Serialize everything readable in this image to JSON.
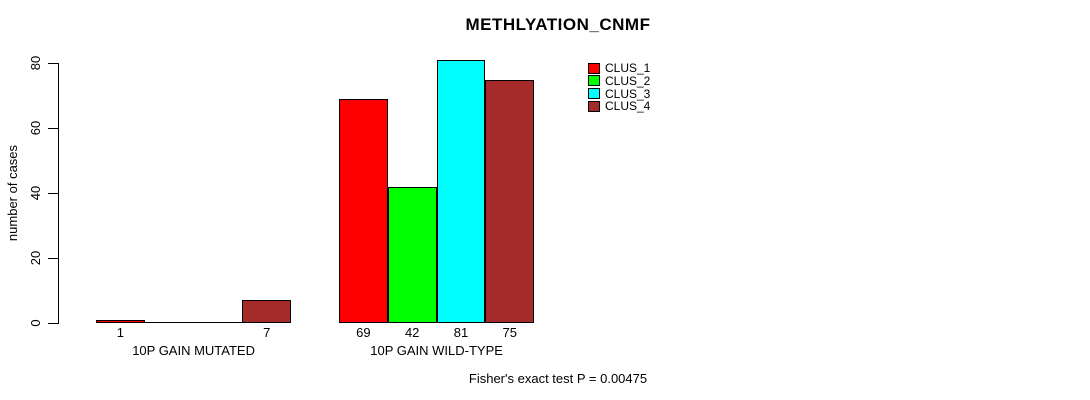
{
  "title": "METHLYATION_CNMF",
  "footer": "Fisher's exact test P = 0.00475",
  "chart_data": {
    "type": "bar",
    "categories": [
      "10P GAIN MUTATED",
      "10P GAIN WILD-TYPE"
    ],
    "series": [
      {
        "name": "CLUS_1",
        "color": "#FF0000",
        "values": [
          1,
          69
        ]
      },
      {
        "name": "CLUS_2",
        "color": "#00FF00",
        "values": [
          0,
          42
        ]
      },
      {
        "name": "CLUS_3",
        "color": "#00FFFF",
        "values": [
          0,
          81
        ]
      },
      {
        "name": "CLUS_4",
        "color": "#A52A2A",
        "values": [
          7,
          75
        ]
      }
    ],
    "ylabel": "number of cases",
    "ylim": [
      0,
      80
    ],
    "yticks": [
      0,
      20,
      40,
      60,
      80
    ],
    "value_labels": "shown for non-zero bars",
    "legend_position": "top-right",
    "grid": false
  }
}
